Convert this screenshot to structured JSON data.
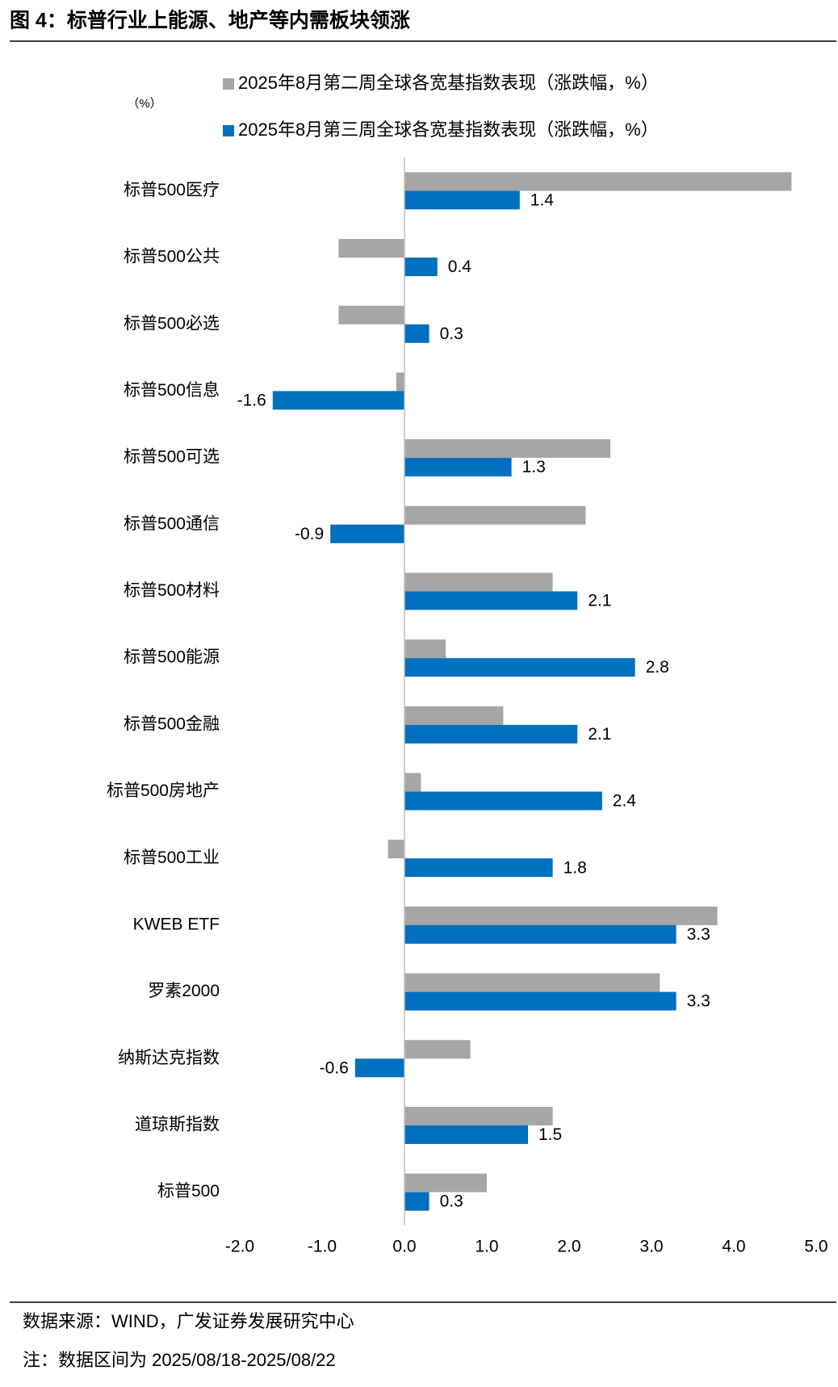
{
  "chart_data": {
    "type": "hbar",
    "title": "图 4：标普行业上能源、地产等内需板块领涨",
    "unit_label": "（%）",
    "source": "数据来源：WIND，广发证券发展研究中心",
    "note": "注：数据区间为 2025/08/18-2025/08/22",
    "categories": [
      "标普500医疗",
      "标普500公共",
      "标普500必选",
      "标普500信息",
      "标普500可选",
      "标普500通信",
      "标普500材料",
      "标普500能源",
      "标普500金融",
      "标普500房地产",
      "标普500工业",
      "KWEB ETF",
      "罗素2000",
      "纳斯达克指数",
      "道琼斯指数",
      "标普500"
    ],
    "series": [
      {
        "name": "2025年8月第二周全球各宽基指数表现（涨跌幅，%）",
        "color": "#a6a6a6",
        "values": [
          4.7,
          -0.8,
          -0.8,
          -0.1,
          2.5,
          2.2,
          1.8,
          0.5,
          1.2,
          0.2,
          -0.2,
          3.8,
          3.1,
          0.8,
          1.8,
          1.0
        ]
      },
      {
        "name": "2025年8月第三周全球各宽基指数表现（涨跌幅，%）",
        "color": "#0070c0",
        "values": [
          1.4,
          0.4,
          0.3,
          -1.6,
          1.3,
          -0.9,
          2.1,
          2.8,
          2.1,
          2.4,
          1.8,
          3.3,
          3.3,
          -0.6,
          1.5,
          0.3
        ],
        "data_labels": true
      }
    ],
    "xlim": [
      -2,
      5
    ],
    "xticks": [
      {
        "value": -2,
        "label": "-2.0"
      },
      {
        "value": -1,
        "label": "-1.0"
      },
      {
        "value": 0,
        "label": "0.0"
      },
      {
        "value": 1,
        "label": "1.0"
      },
      {
        "value": 2,
        "label": "2.0"
      },
      {
        "value": 3,
        "label": "3.0"
      },
      {
        "value": 4,
        "label": "4.0"
      },
      {
        "value": 5,
        "label": "5.0"
      }
    ]
  }
}
